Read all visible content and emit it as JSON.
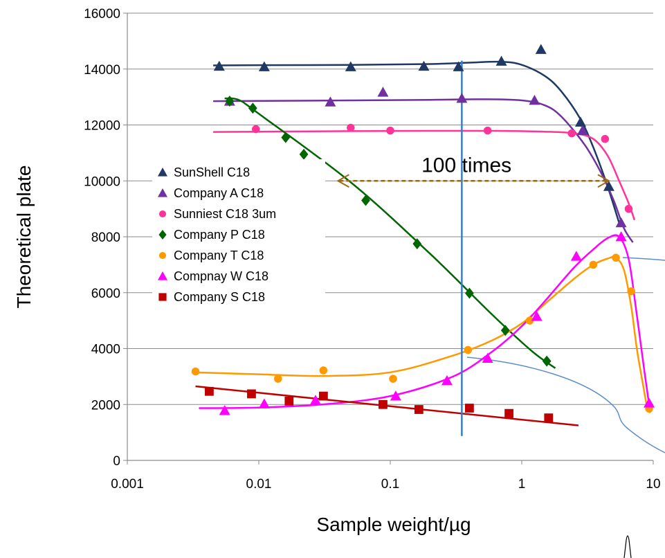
{
  "chart_data": {
    "type": "scatter",
    "title": "",
    "xlabel": "Sample weight/µg",
    "ylabel": "Theoretical plate",
    "xscale": "log",
    "xlim": [
      0.001,
      10
    ],
    "ylim": [
      0,
      16000
    ],
    "x_tick_labels": [
      "0.001",
      "0.01",
      "0.1",
      "1",
      "10"
    ],
    "y_tick_labels": [
      "0",
      "2000",
      "4000",
      "6000",
      "8000",
      "10000",
      "12000",
      "14000",
      "16000"
    ],
    "grid": "horizontal",
    "legend_position": "left",
    "annotation": "100 times",
    "annotation_arrow_x": [
      0.04,
      4.6
    ],
    "annotation_arrow_y": 10000,
    "vertical_line_x": 0.35,
    "series": [
      {
        "name": "SunShell C18",
        "marker": "triangle",
        "color": "#1F3864",
        "x": [
          0.005,
          0.011,
          0.05,
          0.18,
          0.33,
          0.7,
          1.4,
          2.8,
          4.6
        ],
        "y": [
          14100,
          14080,
          14080,
          14100,
          14080,
          14280,
          14700,
          12100,
          9800
        ],
        "trend_x": [
          0.0045,
          0.01,
          0.05,
          0.2,
          0.4,
          0.7,
          1.0,
          1.5,
          2.0,
          2.8,
          3.5,
          4.5,
          5.5
        ],
        "trend_y": [
          14130,
          14140,
          14150,
          14180,
          14230,
          14260,
          14150,
          13750,
          13200,
          12200,
          11200,
          9800,
          8500
        ]
      },
      {
        "name": "Company A C18",
        "marker": "triangle",
        "color": "#7030A0",
        "x": [
          0.006,
          0.035,
          0.088,
          0.35,
          1.25,
          2.9,
          5.7
        ],
        "y": [
          12850,
          12820,
          13170,
          12950,
          12880,
          11800,
          8500
        ],
        "trend_x": [
          0.0045,
          0.01,
          0.05,
          0.2,
          0.5,
          1.0,
          1.5,
          2.0,
          3.0,
          4.0,
          5.0,
          6.0,
          7.0
        ],
        "trend_y": [
          12850,
          12860,
          12880,
          12900,
          12920,
          12880,
          12700,
          12300,
          11300,
          10300,
          9300,
          8300,
          7800
        ]
      },
      {
        "name": "Sunniest C18 3um",
        "marker": "circle",
        "color": "#FF3399",
        "x": [
          0.0095,
          0.05,
          0.1,
          0.55,
          2.4,
          4.3,
          6.5
        ],
        "y": [
          11850,
          11900,
          11800,
          11800,
          11700,
          11500,
          9000
        ],
        "trend_x": [
          0.0045,
          0.01,
          0.05,
          0.2,
          0.6,
          1.5,
          2.5,
          3.5,
          4.5,
          5.5,
          6.5,
          7.2
        ],
        "trend_y": [
          11750,
          11760,
          11780,
          11790,
          11790,
          11760,
          11700,
          11500,
          10900,
          10000,
          9200,
          8600
        ]
      },
      {
        "name": "Company P C18",
        "marker": "diamond",
        "color": "#006600",
        "x": [
          0.006,
          0.009,
          0.016,
          0.022,
          0.065,
          0.16,
          0.4,
          0.75,
          1.55
        ],
        "y": [
          12850,
          12600,
          11550,
          10950,
          9300,
          7750,
          5980,
          4650,
          3550
        ],
        "trend_x": [
          0.0055,
          0.007,
          0.01,
          0.05,
          0.2,
          0.6,
          1.2,
          1.8
        ],
        "trend_y": [
          12950,
          12900,
          12400,
          9950,
          7400,
          5200,
          3900,
          3300
        ]
      },
      {
        "name": "Company T C18",
        "marker": "circle",
        "color": "#FF9900",
        "x": [
          0.0033,
          0.014,
          0.031,
          0.105,
          0.39,
          1.15,
          3.5,
          5.2,
          6.8,
          9.3
        ],
        "y": [
          3180,
          2920,
          3220,
          2920,
          3950,
          5000,
          7000,
          7250,
          6050,
          1850
        ],
        "trend_x": [
          0.0033,
          0.01,
          0.03,
          0.1,
          0.3,
          0.6,
          1.0,
          1.5,
          2.5,
          3.5,
          4.5,
          5.2,
          6.0,
          6.8,
          7.5,
          8.3,
          9.0,
          9.5
        ],
        "trend_y": [
          3150,
          3080,
          3020,
          3150,
          3750,
          4300,
          4900,
          5600,
          6500,
          7000,
          7220,
          7250,
          6800,
          5500,
          4000,
          2800,
          1900,
          1700
        ]
      },
      {
        "name": "Compnay W C18",
        "marker": "triangle",
        "color": "#FF00FF",
        "x": [
          0.0055,
          0.011,
          0.027,
          0.11,
          0.27,
          0.55,
          1.3,
          2.6,
          5.7,
          9.3
        ],
        "y": [
          1780,
          2020,
          2150,
          2300,
          2850,
          3650,
          5150,
          7300,
          8000,
          2050
        ],
        "trend_x": [
          0.0035,
          0.01,
          0.03,
          0.1,
          0.3,
          0.6,
          1.0,
          1.5,
          2.5,
          3.5,
          4.5,
          5.5,
          6.5,
          7.5,
          8.5,
          9.3
        ],
        "trend_y": [
          1870,
          1890,
          2000,
          2300,
          3000,
          3900,
          4800,
          5700,
          6900,
          7550,
          7950,
          8000,
          7200,
          5200,
          3300,
          2000
        ]
      },
      {
        "name": "Company S C18",
        "marker": "square",
        "color": "#C00000",
        "x": [
          0.0042,
          0.0088,
          0.017,
          0.031,
          0.088,
          0.165,
          0.4,
          0.8,
          1.6
        ],
        "y": [
          2470,
          2380,
          2120,
          2300,
          2000,
          1820,
          1870,
          1680,
          1520
        ],
        "trend_x": [
          0.0033,
          2.7
        ],
        "trend_y": [
          2650,
          1250
        ]
      }
    ],
    "overlay_curve_color": "#5B8FC7"
  }
}
